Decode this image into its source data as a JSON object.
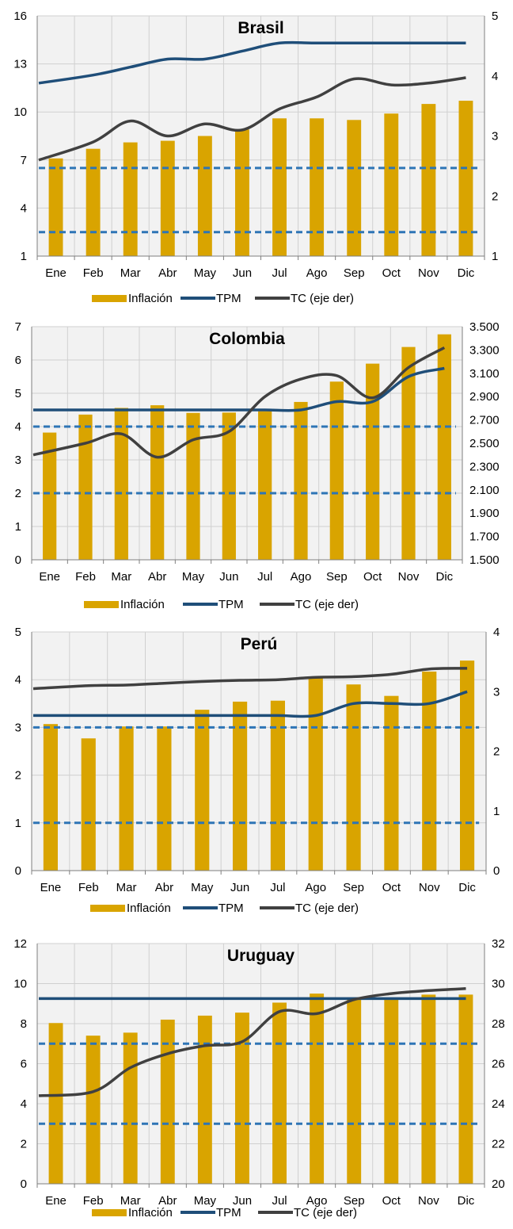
{
  "colors": {
    "inflation": "#D9A400",
    "tpm": "#1F4E79",
    "tc": "#404040",
    "band": "#2E75B6",
    "plot_bg": "#F2F2F2",
    "grid": "#D0D0D0"
  },
  "chart_data": [
    {
      "type": "bar",
      "title": "Brasil",
      "categories": [
        "Ene",
        "Feb",
        "Mar",
        "Abr",
        "May",
        "Jun",
        "Jul",
        "Ago",
        "Sep",
        "Oct",
        "Nov",
        "Dic"
      ],
      "ylim": [
        1,
        16
      ],
      "yticks": [
        1,
        4,
        7,
        10,
        13,
        16
      ],
      "ytick_labels": [
        "1",
        "4",
        "7",
        "10",
        "13",
        "16"
      ],
      "y2lim": [
        1,
        5
      ],
      "y2ticks": [
        1,
        2,
        3,
        4,
        5
      ],
      "y2tick_labels": [
        "1",
        "2",
        "3",
        "4",
        "5"
      ],
      "legend": [
        "Inflación",
        "TPM",
        "TC (eje der)"
      ],
      "series": [
        {
          "name": "Inflación",
          "type": "bar",
          "axis": "left",
          "values": [
            7.1,
            7.7,
            8.1,
            8.2,
            8.5,
            8.9,
            9.6,
            9.6,
            9.5,
            9.9,
            10.5,
            10.7
          ]
        },
        {
          "name": "TPM",
          "type": "line",
          "axis": "left",
          "values": [
            11.8,
            12.3,
            12.8,
            13.3,
            13.3,
            13.8,
            14.3,
            14.3,
            14.3,
            14.3,
            14.3,
            14.3
          ]
        },
        {
          "name": "TC (eje der)",
          "type": "line",
          "axis": "right",
          "values": [
            2.6,
            2.9,
            3.25,
            3.0,
            3.2,
            3.1,
            3.45,
            3.65,
            3.95,
            3.85,
            3.88,
            3.97
          ]
        }
      ],
      "target_band": [
        2.5,
        6.5
      ]
    },
    {
      "type": "bar",
      "title": "Colombia",
      "categories": [
        "Ene",
        "Feb",
        "Mar",
        "Abr",
        "May",
        "Jun",
        "Jul",
        "Ago",
        "Sep",
        "Oct",
        "Nov",
        "Dic"
      ],
      "ylim": [
        0,
        7
      ],
      "yticks": [
        0,
        1,
        2,
        3,
        4,
        5,
        6,
        7
      ],
      "ytick_labels": [
        "0",
        "1",
        "2",
        "3",
        "4",
        "5",
        "6",
        "7"
      ],
      "y2lim": [
        1500,
        3500
      ],
      "y2ticks": [
        1500,
        1700,
        1900,
        2100,
        2300,
        2500,
        2700,
        2900,
        3100,
        3300,
        3500
      ],
      "y2tick_labels": [
        "1.500",
        "1.700",
        "1.900",
        "2.100",
        "2.300",
        "2.500",
        "2.700",
        "2.900",
        "3.100",
        "3.300",
        "3.500"
      ],
      "legend": [
        "Inflación",
        "TPM",
        "TC (eje der)"
      ],
      "series": [
        {
          "name": "Inflación",
          "type": "bar",
          "axis": "left",
          "values": [
            3.82,
            4.36,
            4.56,
            4.64,
            4.41,
            4.42,
            4.46,
            4.74,
            5.35,
            5.89,
            6.39,
            6.77
          ]
        },
        {
          "name": "TPM",
          "type": "line",
          "axis": "left",
          "values": [
            4.5,
            4.5,
            4.5,
            4.5,
            4.5,
            4.5,
            4.5,
            4.5,
            4.75,
            4.75,
            5.5,
            5.75
          ]
        },
        {
          "name": "TC (eje der)",
          "type": "line",
          "axis": "right",
          "values": [
            2400,
            2500,
            2580,
            2380,
            2530,
            2600,
            2900,
            3050,
            3080,
            2890,
            3150,
            3320
          ]
        }
      ],
      "target_band": [
        2,
        4
      ]
    },
    {
      "type": "bar",
      "title": "Perú",
      "categories": [
        "Ene",
        "Feb",
        "Mar",
        "Abr",
        "May",
        "Jun",
        "Jul",
        "Ago",
        "Sep",
        "Oct",
        "Nov",
        "Dic"
      ],
      "ylim": [
        0,
        5
      ],
      "yticks": [
        0,
        1,
        2,
        3,
        4,
        5
      ],
      "ytick_labels": [
        "0",
        "1",
        "2",
        "3",
        "4",
        "5"
      ],
      "y2lim": [
        0,
        4
      ],
      "y2ticks": [
        0,
        1,
        2,
        3,
        4
      ],
      "y2tick_labels": [
        "0",
        "1",
        "2",
        "3",
        "4"
      ],
      "legend": [
        "Inflación",
        "TPM",
        "TC (eje der)"
      ],
      "series": [
        {
          "name": "Inflación",
          "type": "bar",
          "axis": "left",
          "values": [
            3.07,
            2.77,
            3.02,
            3.02,
            3.37,
            3.54,
            3.56,
            4.04,
            3.9,
            3.66,
            4.17,
            4.4
          ]
        },
        {
          "name": "TPM",
          "type": "line",
          "axis": "left",
          "values": [
            3.25,
            3.25,
            3.25,
            3.25,
            3.25,
            3.25,
            3.25,
            3.25,
            3.5,
            3.5,
            3.5,
            3.75
          ]
        },
        {
          "name": "TC (eje der)",
          "type": "line",
          "axis": "right",
          "values": [
            3.05,
            3.1,
            3.11,
            3.14,
            3.17,
            3.19,
            3.2,
            3.24,
            3.25,
            3.29,
            3.38,
            3.39
          ]
        }
      ],
      "target_band": [
        1,
        3
      ]
    },
    {
      "type": "bar",
      "title": "Uruguay",
      "categories": [
        "Ene",
        "Feb",
        "Mar",
        "Abr",
        "May",
        "Jun",
        "Jul",
        "Ago",
        "Sep",
        "Oct",
        "Nov",
        "Dic"
      ],
      "ylim": [
        0,
        12
      ],
      "yticks": [
        0,
        2,
        4,
        6,
        8,
        10,
        12
      ],
      "ytick_labels": [
        "0",
        "2",
        "4",
        "6",
        "8",
        "10",
        "12"
      ],
      "y2lim": [
        20,
        32
      ],
      "y2ticks": [
        20,
        22,
        24,
        26,
        28,
        30,
        32
      ],
      "y2tick_labels": [
        "20",
        "22",
        "24",
        "26",
        "28",
        "30",
        "32"
      ],
      "legend": [
        "Inflación",
        "TPM",
        "TC (eje der)"
      ],
      "series": [
        {
          "name": "Inflación",
          "type": "bar",
          "axis": "left",
          "values": [
            8.03,
            7.4,
            7.55,
            8.2,
            8.4,
            8.55,
            9.05,
            9.5,
            9.2,
            9.3,
            9.45,
            9.45
          ]
        },
        {
          "name": "TPM",
          "type": "line",
          "axis": "left",
          "values": [
            9.25,
            9.25,
            9.25,
            9.25,
            9.25,
            9.25,
            9.25,
            9.25,
            9.25,
            9.25,
            9.25,
            9.25
          ]
        },
        {
          "name": "TC (eje der)",
          "type": "line",
          "axis": "right",
          "values": [
            24.4,
            24.6,
            25.8,
            26.5,
            26.9,
            27.1,
            28.6,
            28.5,
            29.2,
            29.5,
            29.65,
            29.75
          ]
        }
      ],
      "target_band": [
        3,
        7
      ]
    }
  ]
}
